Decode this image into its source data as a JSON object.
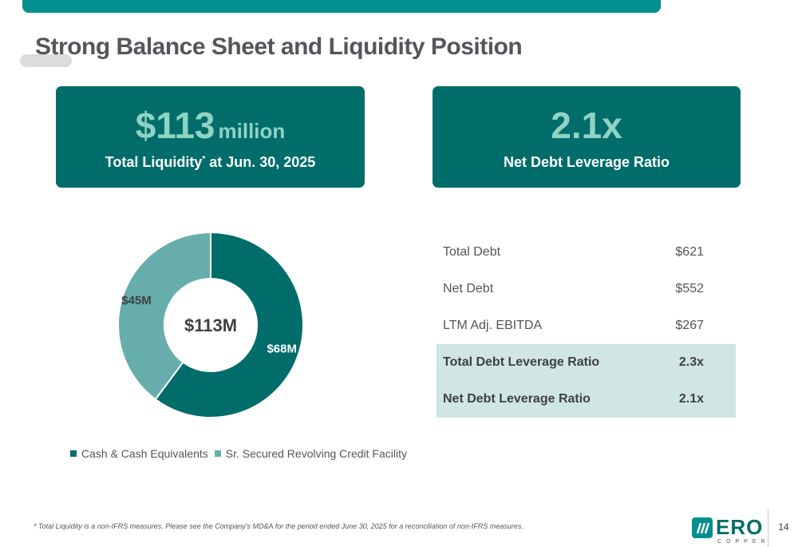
{
  "title": "Strong Balance Sheet and Liquidity Position",
  "card_left": {
    "value": "$113",
    "unit": "million",
    "label": "Total Liquidity",
    "label_mark": "*",
    "label_suffix": " at Jun. 30, 2025"
  },
  "card_right": {
    "value": "2.1x",
    "label": "Net Debt Leverage Ratio"
  },
  "chart_data": {
    "type": "pie",
    "center_label": "$113M",
    "categories": [
      "Cash & Cash Equivalents",
      "Sr. Secured Revolving Credit Facility"
    ],
    "values": [
      68,
      45
    ],
    "data_labels": [
      "$68M",
      "$45M"
    ],
    "colors": [
      "#006d6b",
      "#66adab"
    ],
    "legend_position": "bottom"
  },
  "table": {
    "rows": [
      {
        "label": "Total Debt",
        "value": "$621",
        "highlight": false
      },
      {
        "label": "Net Debt",
        "value": "$552",
        "highlight": false
      },
      {
        "label": "LTM Adj. EBITDA",
        "value": "$267",
        "highlight": false
      },
      {
        "label": "Total Debt Leverage Ratio",
        "value": "2.3x",
        "highlight": true
      },
      {
        "label": "Net Debt Leverage Ratio",
        "value": "2.1x",
        "highlight": true
      }
    ]
  },
  "footnote": "* Total Liquidity is a non-IFRS measures. Please see the Company's MD&A for the period ended June 30, 2025 for a reconciliation of non-IFRS measures.",
  "logo": {
    "text": "ERO",
    "sub": "COPPER"
  },
  "page_number": "14",
  "colors": {
    "accent": "#00908d",
    "dark_teal": "#006d6b",
    "light_teal": "#66adab",
    "highlight_row": "#cfe6e2"
  }
}
